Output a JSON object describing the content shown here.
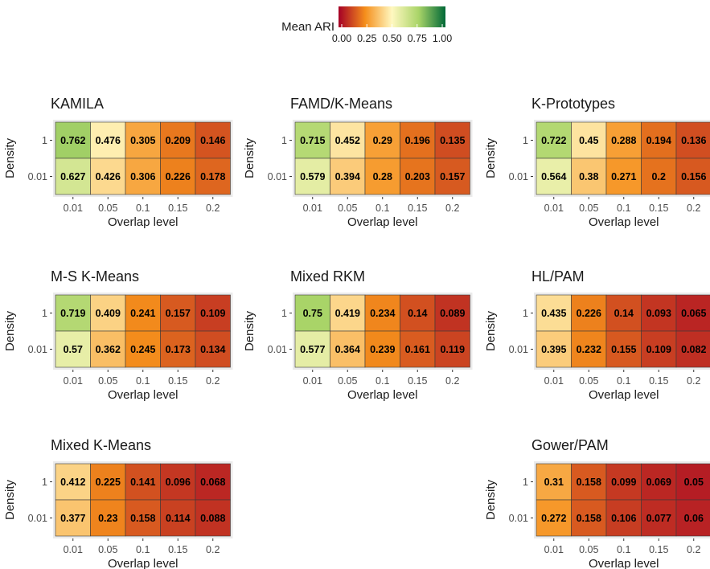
{
  "legend": {
    "title": "Mean ARI",
    "ticks": [
      "0.00",
      "0.25",
      "0.50",
      "0.75",
      "1.00"
    ],
    "tick_values": [
      0,
      0.25,
      0.5,
      0.75,
      1.0
    ],
    "colors": [
      "#a50026",
      "#f58f1c",
      "#fff8c0",
      "#a9d468",
      "#006837"
    ]
  },
  "chart_data": [
    {
      "type": "heatmap",
      "title": "KAMILA",
      "xlabel": "Overlap level",
      "ylabel": "Density",
      "x": [
        "0.01",
        "0.05",
        "0.1",
        "0.15",
        "0.2"
      ],
      "y": [
        "1",
        "0.01"
      ],
      "values": [
        [
          0.762,
          0.476,
          0.305,
          0.209,
          0.146
        ],
        [
          0.627,
          0.426,
          0.306,
          0.226,
          0.178
        ]
      ],
      "labels": [
        [
          "0.762",
          "0.476",
          "0.305",
          "0.209",
          "0.146"
        ],
        [
          "0.627",
          "0.426",
          "0.306",
          "0.226",
          "0.178"
        ]
      ]
    },
    {
      "type": "heatmap",
      "title": "FAMD/K-Means",
      "xlabel": "Overlap level",
      "ylabel": "Density",
      "x": [
        "0.01",
        "0.05",
        "0.1",
        "0.15",
        "0.2"
      ],
      "y": [
        "1",
        "0.01"
      ],
      "values": [
        [
          0.715,
          0.452,
          0.29,
          0.196,
          0.135
        ],
        [
          0.579,
          0.394,
          0.28,
          0.203,
          0.157
        ]
      ],
      "labels": [
        [
          "0.715",
          "0.452",
          "0.29",
          "0.196",
          "0.135"
        ],
        [
          "0.579",
          "0.394",
          "0.28",
          "0.203",
          "0.157"
        ]
      ]
    },
    {
      "type": "heatmap",
      "title": "K-Prototypes",
      "xlabel": "Overlap level",
      "ylabel": "Density",
      "x": [
        "0.01",
        "0.05",
        "0.1",
        "0.15",
        "0.2"
      ],
      "y": [
        "1",
        "0.01"
      ],
      "values": [
        [
          0.722,
          0.45,
          0.288,
          0.194,
          0.136
        ],
        [
          0.564,
          0.38,
          0.271,
          0.2,
          0.156
        ]
      ],
      "labels": [
        [
          "0.722",
          "0.45",
          "0.288",
          "0.194",
          "0.136"
        ],
        [
          "0.564",
          "0.38",
          "0.271",
          "0.2",
          "0.156"
        ]
      ]
    },
    {
      "type": "heatmap",
      "title": "M-S K-Means",
      "xlabel": "Overlap level",
      "ylabel": "Density",
      "x": [
        "0.01",
        "0.05",
        "0.1",
        "0.15",
        "0.2"
      ],
      "y": [
        "1",
        "0.01"
      ],
      "values": [
        [
          0.719,
          0.409,
          0.241,
          0.157,
          0.109
        ],
        [
          0.57,
          0.362,
          0.245,
          0.173,
          0.134
        ]
      ],
      "labels": [
        [
          "0.719",
          "0.409",
          "0.241",
          "0.157",
          "0.109"
        ],
        [
          "0.57",
          "0.362",
          "0.245",
          "0.173",
          "0.134"
        ]
      ]
    },
    {
      "type": "heatmap",
      "title": "Mixed RKM",
      "xlabel": "Overlap level",
      "ylabel": "Density",
      "x": [
        "0.01",
        "0.05",
        "0.1",
        "0.15",
        "0.2"
      ],
      "y": [
        "1",
        "0.01"
      ],
      "values": [
        [
          0.75,
          0.419,
          0.234,
          0.14,
          0.089
        ],
        [
          0.577,
          0.364,
          0.239,
          0.161,
          0.119
        ]
      ],
      "labels": [
        [
          "0.75",
          "0.419",
          "0.234",
          "0.14",
          "0.089"
        ],
        [
          "0.577",
          "0.364",
          "0.239",
          "0.161",
          "0.119"
        ]
      ]
    },
    {
      "type": "heatmap",
      "title": "HL/PAM",
      "xlabel": "Overlap level",
      "ylabel": "Density",
      "x": [
        "0.01",
        "0.05",
        "0.1",
        "0.15",
        "0.2"
      ],
      "y": [
        "1",
        "0.01"
      ],
      "values": [
        [
          0.435,
          0.226,
          0.14,
          0.093,
          0.065
        ],
        [
          0.395,
          0.232,
          0.155,
          0.109,
          0.082
        ]
      ],
      "labels": [
        [
          "0.435",
          "0.226",
          "0.14",
          "0.093",
          "0.065"
        ],
        [
          "0.395",
          "0.232",
          "0.155",
          "0.109",
          "0.082"
        ]
      ]
    },
    {
      "type": "heatmap",
      "title": "Mixed K-Means",
      "xlabel": "Overlap level",
      "ylabel": "Density",
      "x": [
        "0.01",
        "0.05",
        "0.1",
        "0.15",
        "0.2"
      ],
      "y": [
        "1",
        "0.01"
      ],
      "values": [
        [
          0.412,
          0.225,
          0.141,
          0.096,
          0.068
        ],
        [
          0.377,
          0.23,
          0.158,
          0.114,
          0.088
        ]
      ],
      "labels": [
        [
          "0.412",
          "0.225",
          "0.141",
          "0.096",
          "0.068"
        ],
        [
          "0.377",
          "0.23",
          "0.158",
          "0.114",
          "0.088"
        ]
      ]
    },
    {
      "type": "heatmap",
      "title": "Gower/PAM",
      "xlabel": "Overlap level",
      "ylabel": "Density",
      "x": [
        "0.01",
        "0.05",
        "0.1",
        "0.15",
        "0.2"
      ],
      "y": [
        "1",
        "0.01"
      ],
      "values": [
        [
          0.31,
          0.158,
          0.099,
          0.069,
          0.05
        ],
        [
          0.272,
          0.158,
          0.106,
          0.077,
          0.06
        ]
      ],
      "labels": [
        [
          "0.31",
          "0.158",
          "0.099",
          "0.069",
          "0.05"
        ],
        [
          "0.272",
          "0.158",
          "0.106",
          "0.077",
          "0.06"
        ]
      ]
    }
  ]
}
